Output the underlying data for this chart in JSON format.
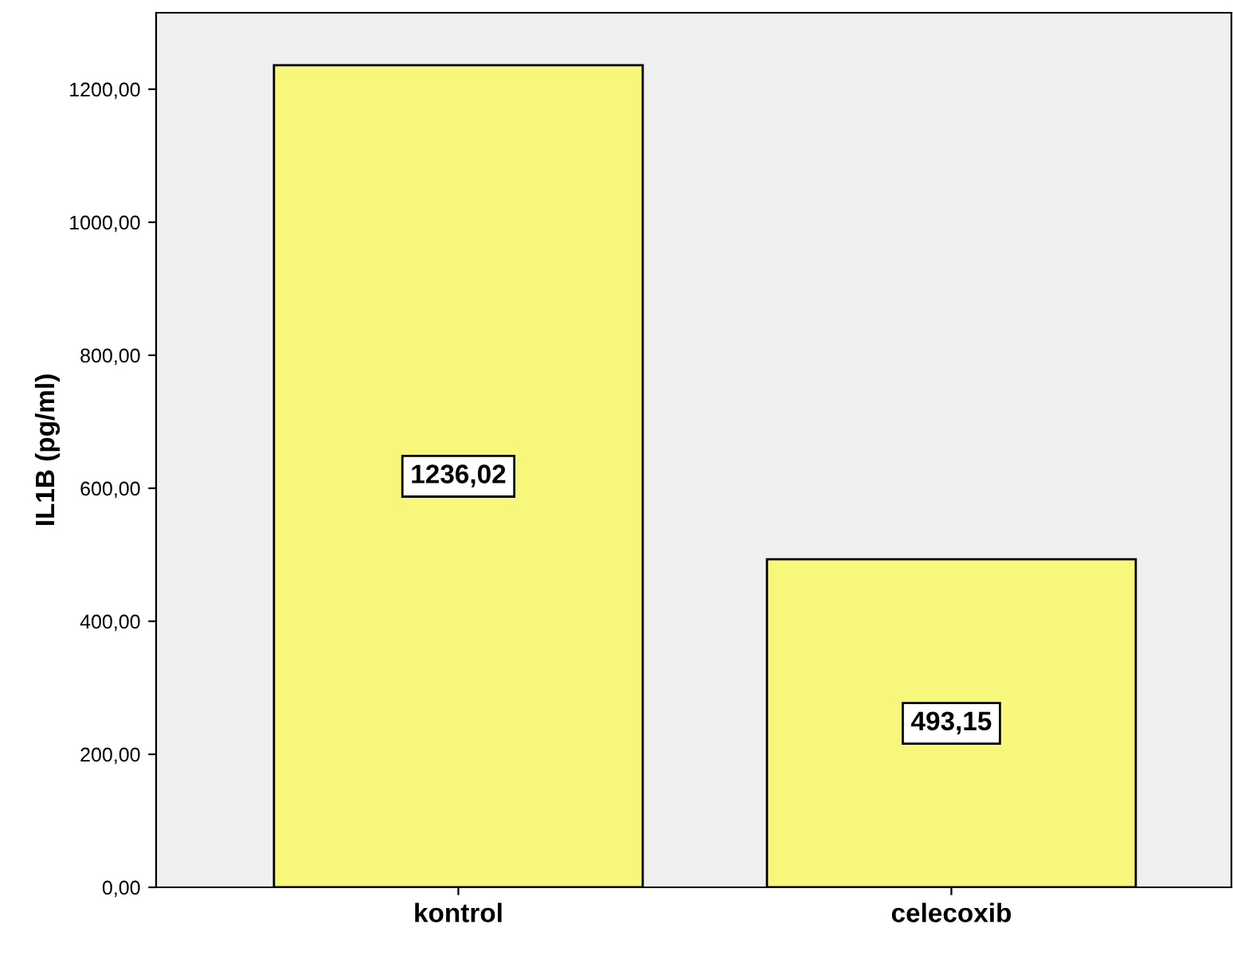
{
  "chart_data": {
    "type": "bar",
    "ylabel": "IL1B (pg/ml)",
    "categories": [
      "kontrol",
      "celecoxib"
    ],
    "values": [
      1236.02,
      493.15
    ],
    "color": "#f7f77c",
    "value_labels": [
      "1236,02",
      "493,15"
    ],
    "ylim": [
      0,
      1315
    ],
    "yticks": [
      {
        "value": 0,
        "label": "0,00"
      },
      {
        "value": 200,
        "label": "200,00"
      },
      {
        "value": 400,
        "label": "400,00"
      },
      {
        "value": 600,
        "label": "600,00"
      },
      {
        "value": 800,
        "label": "800,00"
      },
      {
        "value": 1000,
        "label": "1000,00"
      },
      {
        "value": 1200,
        "label": "1200,00"
      }
    ],
    "grid": false,
    "legend": false
  }
}
